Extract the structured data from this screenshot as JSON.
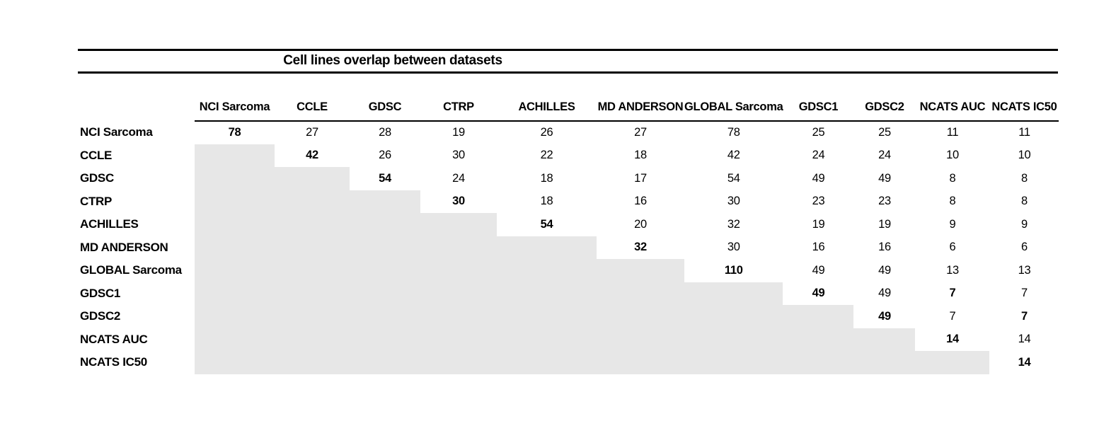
{
  "chart_data": {
    "type": "table",
    "title": "Cell lines overlap between datasets",
    "columns": [
      "NCI Sarcoma",
      "CCLE",
      "GDSC",
      "CTRP",
      "ACHILLES",
      "MD ANDERSON",
      "GLOBAL Sarcoma",
      "GDSC1",
      "GDSC2",
      "NCATS AUC",
      "NCATS IC50"
    ],
    "rows": [
      {
        "label": "NCI Sarcoma",
        "values": [
          78,
          27,
          28,
          19,
          26,
          27,
          78,
          25,
          25,
          11,
          11
        ],
        "bold": [
          0
        ]
      },
      {
        "label": "CCLE",
        "values": [
          null,
          42,
          26,
          30,
          22,
          18,
          42,
          24,
          24,
          10,
          10
        ],
        "bold": [
          1
        ]
      },
      {
        "label": "GDSC",
        "values": [
          null,
          null,
          54,
          24,
          18,
          17,
          54,
          49,
          49,
          8,
          8
        ],
        "bold": [
          2
        ]
      },
      {
        "label": "CTRP",
        "values": [
          null,
          null,
          null,
          30,
          18,
          16,
          30,
          23,
          23,
          8,
          8
        ],
        "bold": [
          3
        ]
      },
      {
        "label": "ACHILLES",
        "values": [
          null,
          null,
          null,
          null,
          54,
          20,
          32,
          19,
          19,
          9,
          9
        ],
        "bold": [
          4
        ]
      },
      {
        "label": "MD ANDERSON",
        "values": [
          null,
          null,
          null,
          null,
          null,
          32,
          30,
          16,
          16,
          6,
          6
        ],
        "bold": [
          5
        ]
      },
      {
        "label": "GLOBAL Sarcoma",
        "values": [
          null,
          null,
          null,
          null,
          null,
          null,
          110,
          49,
          49,
          13,
          13
        ],
        "bold": [
          6
        ]
      },
      {
        "label": "GDSC1",
        "values": [
          null,
          null,
          null,
          null,
          null,
          null,
          null,
          49,
          49,
          7,
          7
        ],
        "bold": [
          7,
          9
        ]
      },
      {
        "label": "GDSC2",
        "values": [
          null,
          null,
          null,
          null,
          null,
          null,
          null,
          null,
          49,
          7,
          7
        ],
        "bold": [
          8,
          10
        ]
      },
      {
        "label": "NCATS AUC",
        "values": [
          null,
          null,
          null,
          null,
          null,
          null,
          null,
          null,
          null,
          14,
          14
        ],
        "bold": [
          9
        ]
      },
      {
        "label": "NCATS IC50",
        "values": [
          null,
          null,
          null,
          null,
          null,
          null,
          null,
          null,
          null,
          null,
          14
        ],
        "bold": [
          10
        ]
      }
    ],
    "layout": {
      "lower_triangle": "shaded",
      "diagonal": "bold",
      "legend": "none",
      "grid": "off"
    }
  },
  "colors": {
    "text": "#000000",
    "rule": "#000000",
    "shaded_cell": "#e7e7e7"
  }
}
